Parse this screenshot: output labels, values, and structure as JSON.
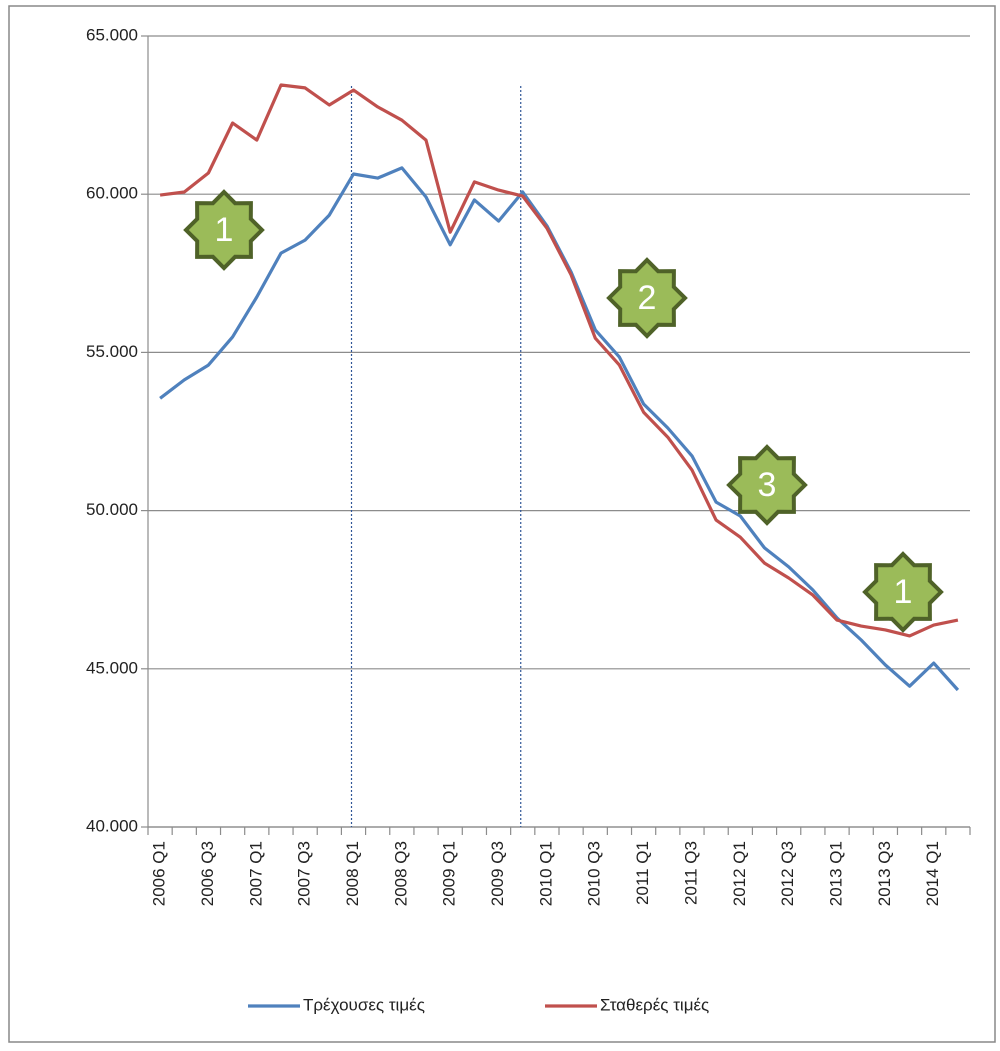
{
  "chart_data": {
    "type": "line",
    "categories": [
      "2006 Q1",
      null,
      "2006 Q3",
      null,
      "2007 Q1",
      null,
      "2007 Q3",
      null,
      "2008 Q1",
      null,
      "2008 Q3",
      null,
      "2009 Q1",
      null,
      "2009 Q3",
      null,
      "2010 Q1",
      null,
      "2010 Q3",
      null,
      "2011 Q1",
      null,
      "2011 Q3",
      null,
      "2012 Q1",
      null,
      "2012 Q3",
      null,
      "2013 Q1",
      null,
      "2013 Q3",
      null,
      "2014 Q1",
      null
    ],
    "series": [
      {
        "name": "Τρέχουσες τιμές",
        "color": "#4f81bd",
        "values": [
          53550,
          54130,
          54600,
          55490,
          56750,
          58140,
          58550,
          59340,
          60640,
          60510,
          60830,
          59910,
          58400,
          59820,
          59150,
          60070,
          59000,
          57540,
          55710,
          54850,
          53370,
          52610,
          51730,
          50270,
          49830,
          48820,
          48220,
          47490,
          46610,
          45910,
          45120,
          44450,
          45180,
          44330
        ]
      },
      {
        "name": "Σταθερές τιμές",
        "color": "#c0504d",
        "values": [
          59970,
          60070,
          60670,
          62250,
          61710,
          63450,
          63360,
          62820,
          63290,
          62760,
          62340,
          61710,
          58800,
          60390,
          60130,
          59940,
          58930,
          57450,
          55450,
          54600,
          53110,
          52320,
          51280,
          49700,
          49160,
          48340,
          47870,
          47330,
          46540,
          46350,
          46230,
          46040,
          46380,
          46540
        ]
      }
    ],
    "ylim": [
      40000,
      65000
    ],
    "yticks": [
      {
        "value": 40000,
        "label": "40.000"
      },
      {
        "value": 45000,
        "label": "45.000"
      },
      {
        "value": 50000,
        "label": "50.000"
      },
      {
        "value": 55000,
        "label": "55.000"
      },
      {
        "value": 60000,
        "label": "60.000"
      },
      {
        "value": 65000,
        "label": "65.000"
      }
    ],
    "grid": true,
    "legend": "bottom",
    "annotations": [
      "1",
      "2",
      "3",
      "1"
    ]
  }
}
